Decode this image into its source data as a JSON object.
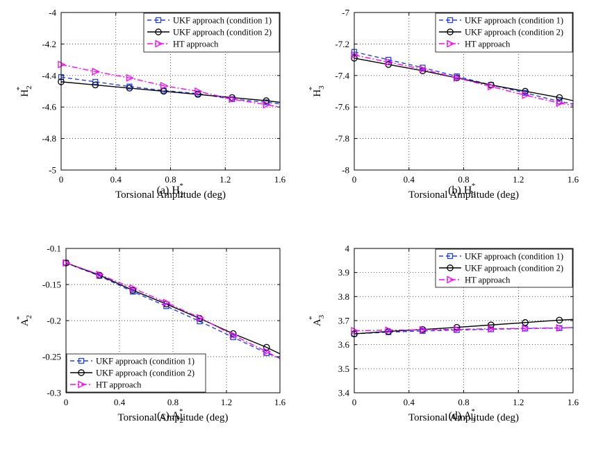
{
  "figure": {
    "marker_color_map": {
      "square": "#1f3fff",
      "circle": "#000000",
      "triangle": "#ff00ff"
    }
  },
  "chart_data": [
    {
      "id": "a",
      "type": "line",
      "caption_prefix": "(a)",
      "caption_var": "H",
      "caption_sub": "2",
      "caption_sup": "*",
      "ylabel_main": "H",
      "ylabel_sub": "2",
      "ylabel_sup": "*",
      "xlabel": "Torsional Amplitude (deg)",
      "xlim": [
        0,
        1.6
      ],
      "ylim": [
        -5,
        -4
      ],
      "xticks": [
        0,
        0.4,
        0.8,
        1.2,
        1.6
      ],
      "xtick_labels": [
        "0",
        "0.4",
        "0.8",
        "1.2",
        "1.6"
      ],
      "yticks": [
        -5,
        -4.8,
        -4.6,
        -4.4,
        -4.2,
        -4
      ],
      "ytick_labels": [
        "-5",
        "-4.8",
        "-4.6",
        "-4.4",
        "-4.2",
        "-4"
      ],
      "legend_position": "top-right",
      "series": [
        {
          "name": "UKF approach (condition 1)",
          "color": "#1f3fff",
          "dash": "6,4",
          "marker": "square",
          "x": [
            0,
            0.25,
            0.5,
            0.75,
            1.0,
            1.25,
            1.5
          ],
          "y": [
            -4.41,
            -4.44,
            -4.47,
            -4.495,
            -4.515,
            -4.55,
            -4.57
          ],
          "line_end": [
            1.6,
            -4.58
          ]
        },
        {
          "name": "UKF approach (condition 2)",
          "color": "#000000",
          "dash": "",
          "marker": "circle",
          "x": [
            0,
            0.25,
            0.5,
            0.75,
            1.0,
            1.25,
            1.5
          ],
          "y": [
            -4.44,
            -4.46,
            -4.48,
            -4.5,
            -4.52,
            -4.54,
            -4.56
          ],
          "line_end": [
            1.6,
            -4.57
          ]
        },
        {
          "name": "HT approach",
          "color": "#ff00ff",
          "dash": "8,3,2,3",
          "marker": "triangle",
          "x": [
            0,
            0.25,
            0.5,
            0.75,
            1.0,
            1.25,
            1.5
          ],
          "y": [
            -4.33,
            -4.375,
            -4.415,
            -4.465,
            -4.5,
            -4.55,
            -4.585
          ],
          "line_end": [
            1.6,
            -4.6
          ]
        }
      ]
    },
    {
      "id": "b",
      "type": "line",
      "caption_prefix": "(b)",
      "caption_var": "H",
      "caption_sub": "3",
      "caption_sup": "*",
      "ylabel_main": "H",
      "ylabel_sub": "3",
      "ylabel_sup": "*",
      "xlabel": "Torsional Amplitude (deg)",
      "xlim": [
        0,
        1.6
      ],
      "ylim": [
        -8,
        -7
      ],
      "xticks": [
        0,
        0.4,
        0.8,
        1.2,
        1.6
      ],
      "xtick_labels": [
        "0",
        "0.4",
        "0.8",
        "1.2",
        "1.6"
      ],
      "yticks": [
        -8,
        -7.8,
        -7.6,
        -7.4,
        -7.2,
        -7
      ],
      "ytick_labels": [
        "-8",
        "-7.8",
        "-7.6",
        "-7.4",
        "-7.2",
        "-7"
      ],
      "legend_position": "top-right",
      "series": [
        {
          "name": "UKF approach (condition 1)",
          "color": "#1f3fff",
          "dash": "6,4",
          "marker": "square",
          "x": [
            0,
            0.25,
            0.5,
            0.75,
            1.0,
            1.25,
            1.5
          ],
          "y": [
            -7.25,
            -7.3,
            -7.35,
            -7.405,
            -7.46,
            -7.51,
            -7.565
          ],
          "line_end": [
            1.6,
            -7.58
          ]
        },
        {
          "name": "UKF approach (condition 2)",
          "color": "#000000",
          "dash": "",
          "marker": "circle",
          "x": [
            0,
            0.25,
            0.5,
            0.75,
            1.0,
            1.25,
            1.5
          ],
          "y": [
            -7.29,
            -7.33,
            -7.37,
            -7.415,
            -7.46,
            -7.5,
            -7.54
          ],
          "line_end": [
            1.6,
            -7.56
          ]
        },
        {
          "name": "HT approach",
          "color": "#ff00ff",
          "dash": "8,3,2,3",
          "marker": "triangle",
          "x": [
            0,
            0.25,
            0.5,
            0.75,
            1.0,
            1.25,
            1.5
          ],
          "y": [
            -7.27,
            -7.315,
            -7.36,
            -7.415,
            -7.47,
            -7.525,
            -7.575
          ],
          "line_end": [
            1.6,
            -7.59
          ]
        }
      ]
    },
    {
      "id": "c",
      "type": "line",
      "caption_prefix": "(c)",
      "caption_var": "A",
      "caption_sub": "2",
      "caption_sup": "*",
      "ylabel_main": "A",
      "ylabel_sub": "2",
      "ylabel_sup": "*",
      "xlabel": "Torsional Amplitude (deg)",
      "xlim": [
        0,
        1.6
      ],
      "ylim": [
        -0.3,
        -0.1
      ],
      "xticks": [
        0,
        0.4,
        0.8,
        1.2,
        1.6
      ],
      "xtick_labels": [
        "0",
        "0.4",
        "0.8",
        "1.2",
        "1.6"
      ],
      "yticks": [
        -0.3,
        -0.25,
        -0.2,
        -0.15,
        -0.1
      ],
      "ytick_labels": [
        "-0.3",
        "-0.25",
        "-0.2",
        "-0.15",
        "-0.1"
      ],
      "legend_position": "bottom-left",
      "series": [
        {
          "name": "UKF approach (condition 1)",
          "color": "#1f3fff",
          "dash": "6,4",
          "marker": "square",
          "x": [
            0,
            0.25,
            0.5,
            0.75,
            1.0,
            1.25,
            1.5
          ],
          "y": [
            -0.12,
            -0.138,
            -0.16,
            -0.18,
            -0.201,
            -0.223,
            -0.245
          ],
          "line_end": [
            1.6,
            -0.252
          ]
        },
        {
          "name": "UKF approach (condition 2)",
          "color": "#000000",
          "dash": "",
          "marker": "circle",
          "x": [
            0,
            0.25,
            0.5,
            0.75,
            1.0,
            1.25,
            1.5
          ],
          "y": [
            -0.12,
            -0.137,
            -0.158,
            -0.177,
            -0.197,
            -0.218,
            -0.237
          ],
          "line_end": [
            1.6,
            -0.246
          ]
        },
        {
          "name": "HT approach",
          "color": "#ff00ff",
          "dash": "8,3,2,3",
          "marker": "triangle",
          "x": [
            0,
            0.25,
            0.5,
            0.75,
            1.0,
            1.25,
            1.5
          ],
          "y": [
            -0.12,
            -0.136,
            -0.155,
            -0.175,
            -0.196,
            -0.22,
            -0.243
          ],
          "line_end": [
            1.6,
            -0.253
          ]
        }
      ]
    },
    {
      "id": "d",
      "type": "line",
      "caption_prefix": "(d)",
      "caption_var": "A",
      "caption_sub": "3",
      "caption_sup": "*",
      "ylabel_main": "A",
      "ylabel_sub": "3",
      "ylabel_sup": "*",
      "xlabel": "Torsional Amplitude (deg)",
      "xlim": [
        0,
        1.6
      ],
      "ylim": [
        3.4,
        4
      ],
      "xticks": [
        0,
        0.4,
        0.8,
        1.2,
        1.6
      ],
      "xtick_labels": [
        "0",
        "0.4",
        "0.8",
        "1.2",
        "1.6"
      ],
      "yticks": [
        3.4,
        3.5,
        3.6,
        3.7,
        3.8,
        3.9,
        4
      ],
      "ytick_labels": [
        "3.4",
        "3.5",
        "3.6",
        "3.7",
        "3.8",
        "3.9",
        "4"
      ],
      "legend_position": "top-right",
      "series": [
        {
          "name": "UKF approach (condition 1)",
          "color": "#1f3fff",
          "dash": "6,4",
          "marker": "square",
          "x": [
            0,
            0.25,
            0.5,
            0.75,
            1.0,
            1.25,
            1.5
          ],
          "y": [
            3.645,
            3.652,
            3.657,
            3.661,
            3.664,
            3.667,
            3.669
          ],
          "line_end": [
            1.6,
            3.671
          ]
        },
        {
          "name": "UKF approach (condition 2)",
          "color": "#000000",
          "dash": "",
          "marker": "circle",
          "x": [
            0,
            0.25,
            0.5,
            0.75,
            1.0,
            1.25,
            1.5
          ],
          "y": [
            3.645,
            3.655,
            3.663,
            3.672,
            3.682,
            3.692,
            3.702
          ],
          "line_end": [
            1.6,
            3.705
          ]
        },
        {
          "name": "HT approach",
          "color": "#ff00ff",
          "dash": "8,3,2,3",
          "marker": "triangle",
          "x": [
            0,
            0.25,
            0.5,
            0.75,
            1.0,
            1.25,
            1.5
          ],
          "y": [
            3.658,
            3.66,
            3.662,
            3.664,
            3.666,
            3.668,
            3.67
          ],
          "line_end": [
            1.6,
            3.671
          ]
        }
      ]
    }
  ]
}
